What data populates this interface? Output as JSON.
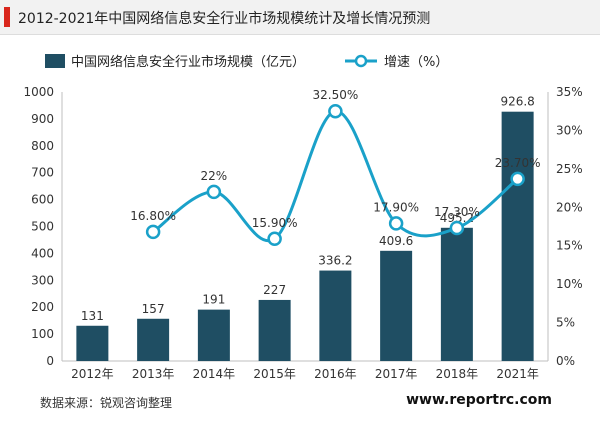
{
  "header": {
    "title": "2012-2021年中国网络信息安全行业市场规模统计及增长情况预测"
  },
  "footer": {
    "source": "数据来源：锐观咨询整理",
    "site": "www.reportrc.com"
  },
  "chart_data": {
    "type": "bar",
    "title": "2012-2021年中国网络信息安全行业市场规模统计及增长情况预测",
    "categories": [
      "2012年",
      "2013年",
      "2014年",
      "2015年",
      "2016年",
      "2017年",
      "2018年",
      "2021年"
    ],
    "series": [
      {
        "name": "中国网络信息安全行业市场规模（亿元）",
        "type": "bar",
        "axis": "left",
        "values": [
          131,
          157,
          191,
          227,
          336.2,
          409.6,
          495.2,
          926.8
        ],
        "labels": [
          "131",
          "157",
          "191",
          "227",
          "336.2",
          "409.6",
          "495.2",
          "926.8"
        ],
        "color": "#1f4e63"
      },
      {
        "name": "增速（%）",
        "type": "line",
        "axis": "right",
        "values": [
          null,
          16.8,
          22,
          15.9,
          32.5,
          17.9,
          17.3,
          23.7
        ],
        "labels": [
          "",
          "16.80%",
          "22%",
          "15.90%",
          "32.50%",
          "17.90%",
          "17.30%",
          "23.70%"
        ],
        "color": "#1aa1c9",
        "smooth": true
      }
    ],
    "y_left": {
      "lim": [
        0,
        1000
      ],
      "ticks": [
        "0",
        "100",
        "200",
        "300",
        "400",
        "500",
        "600",
        "700",
        "800",
        "900",
        "1000"
      ]
    },
    "y_right": {
      "lim": [
        0,
        35
      ],
      "ticks": [
        "0%",
        "5%",
        "10%",
        "15%",
        "20%",
        "25%",
        "30%",
        "35%"
      ]
    },
    "legend_position": "top-left",
    "grid": false
  },
  "colors": {
    "accent": "#d9261c",
    "bar": "#1f4e63",
    "line": "#1aa1c9"
  }
}
